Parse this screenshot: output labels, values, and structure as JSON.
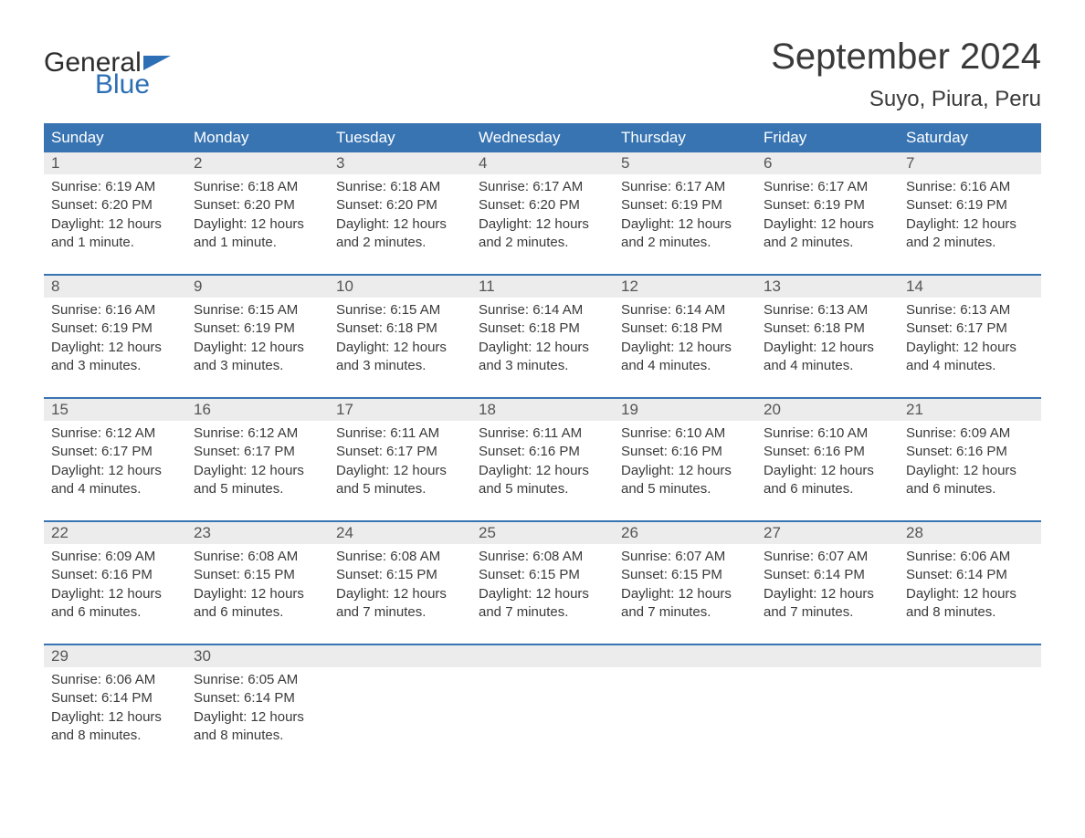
{
  "brand": {
    "part1": "General",
    "part2": "Blue"
  },
  "title": "September 2024",
  "location": "Suyo, Piura, Peru",
  "colors": {
    "header_bg": "#3874b2",
    "header_fg": "#ffffff",
    "daynum_bg": "#ececec",
    "sep": "#3874b2",
    "text": "#3a3a3a",
    "logo_blue": "#2d6fb5"
  },
  "dayNames": [
    "Sunday",
    "Monday",
    "Tuesday",
    "Wednesday",
    "Thursday",
    "Friday",
    "Saturday"
  ],
  "labels": {
    "sunrise": "Sunrise: ",
    "sunset": "Sunset: ",
    "daylight": "Daylight: "
  },
  "weeks": [
    [
      {
        "n": "1",
        "sunrise": "6:19 AM",
        "sunset": "6:20 PM",
        "daylight": "12 hours and 1 minute."
      },
      {
        "n": "2",
        "sunrise": "6:18 AM",
        "sunset": "6:20 PM",
        "daylight": "12 hours and 1 minute."
      },
      {
        "n": "3",
        "sunrise": "6:18 AM",
        "sunset": "6:20 PM",
        "daylight": "12 hours and 2 minutes."
      },
      {
        "n": "4",
        "sunrise": "6:17 AM",
        "sunset": "6:20 PM",
        "daylight": "12 hours and 2 minutes."
      },
      {
        "n": "5",
        "sunrise": "6:17 AM",
        "sunset": "6:19 PM",
        "daylight": "12 hours and 2 minutes."
      },
      {
        "n": "6",
        "sunrise": "6:17 AM",
        "sunset": "6:19 PM",
        "daylight": "12 hours and 2 minutes."
      },
      {
        "n": "7",
        "sunrise": "6:16 AM",
        "sunset": "6:19 PM",
        "daylight": "12 hours and 2 minutes."
      }
    ],
    [
      {
        "n": "8",
        "sunrise": "6:16 AM",
        "sunset": "6:19 PM",
        "daylight": "12 hours and 3 minutes."
      },
      {
        "n": "9",
        "sunrise": "6:15 AM",
        "sunset": "6:19 PM",
        "daylight": "12 hours and 3 minutes."
      },
      {
        "n": "10",
        "sunrise": "6:15 AM",
        "sunset": "6:18 PM",
        "daylight": "12 hours and 3 minutes."
      },
      {
        "n": "11",
        "sunrise": "6:14 AM",
        "sunset": "6:18 PM",
        "daylight": "12 hours and 3 minutes."
      },
      {
        "n": "12",
        "sunrise": "6:14 AM",
        "sunset": "6:18 PM",
        "daylight": "12 hours and 4 minutes."
      },
      {
        "n": "13",
        "sunrise": "6:13 AM",
        "sunset": "6:18 PM",
        "daylight": "12 hours and 4 minutes."
      },
      {
        "n": "14",
        "sunrise": "6:13 AM",
        "sunset": "6:17 PM",
        "daylight": "12 hours and 4 minutes."
      }
    ],
    [
      {
        "n": "15",
        "sunrise": "6:12 AM",
        "sunset": "6:17 PM",
        "daylight": "12 hours and 4 minutes."
      },
      {
        "n": "16",
        "sunrise": "6:12 AM",
        "sunset": "6:17 PM",
        "daylight": "12 hours and 5 minutes."
      },
      {
        "n": "17",
        "sunrise": "6:11 AM",
        "sunset": "6:17 PM",
        "daylight": "12 hours and 5 minutes."
      },
      {
        "n": "18",
        "sunrise": "6:11 AM",
        "sunset": "6:16 PM",
        "daylight": "12 hours and 5 minutes."
      },
      {
        "n": "19",
        "sunrise": "6:10 AM",
        "sunset": "6:16 PM",
        "daylight": "12 hours and 5 minutes."
      },
      {
        "n": "20",
        "sunrise": "6:10 AM",
        "sunset": "6:16 PM",
        "daylight": "12 hours and 6 minutes."
      },
      {
        "n": "21",
        "sunrise": "6:09 AM",
        "sunset": "6:16 PM",
        "daylight": "12 hours and 6 minutes."
      }
    ],
    [
      {
        "n": "22",
        "sunrise": "6:09 AM",
        "sunset": "6:16 PM",
        "daylight": "12 hours and 6 minutes."
      },
      {
        "n": "23",
        "sunrise": "6:08 AM",
        "sunset": "6:15 PM",
        "daylight": "12 hours and 6 minutes."
      },
      {
        "n": "24",
        "sunrise": "6:08 AM",
        "sunset": "6:15 PM",
        "daylight": "12 hours and 7 minutes."
      },
      {
        "n": "25",
        "sunrise": "6:08 AM",
        "sunset": "6:15 PM",
        "daylight": "12 hours and 7 minutes."
      },
      {
        "n": "26",
        "sunrise": "6:07 AM",
        "sunset": "6:15 PM",
        "daylight": "12 hours and 7 minutes."
      },
      {
        "n": "27",
        "sunrise": "6:07 AM",
        "sunset": "6:14 PM",
        "daylight": "12 hours and 7 minutes."
      },
      {
        "n": "28",
        "sunrise": "6:06 AM",
        "sunset": "6:14 PM",
        "daylight": "12 hours and 8 minutes."
      }
    ],
    [
      {
        "n": "29",
        "sunrise": "6:06 AM",
        "sunset": "6:14 PM",
        "daylight": "12 hours and 8 minutes."
      },
      {
        "n": "30",
        "sunrise": "6:05 AM",
        "sunset": "6:14 PM",
        "daylight": "12 hours and 8 minutes."
      },
      null,
      null,
      null,
      null,
      null
    ]
  ]
}
